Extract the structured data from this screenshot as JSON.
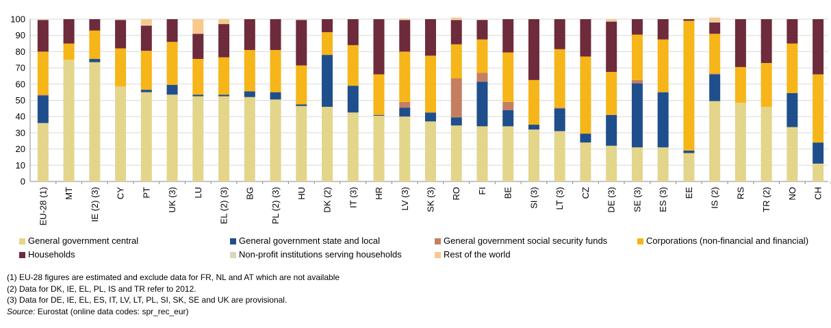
{
  "chart_data": {
    "type": "bar",
    "stacked": true,
    "title": "",
    "xlabel": "",
    "ylabel": "",
    "ylim": [
      0,
      100
    ],
    "yticks": [
      0,
      10,
      20,
      30,
      40,
      50,
      60,
      70,
      80,
      90,
      100
    ],
    "grid": true,
    "legend_position": "bottom",
    "categories": [
      "EU-28 (1)",
      "MT",
      "IE (2) (3)",
      "CY",
      "PT",
      "UK (3)",
      "LU",
      "EL (2) (3)",
      "BG",
      "PL (2) (3)",
      "HU",
      "DK (2)",
      "IT (3)",
      "HR",
      "LV (3)",
      "SK (3)",
      "RO",
      "FI",
      "BE",
      "SI (3)",
      "LT (3)",
      "CZ",
      "DE (3)",
      "SE (3)",
      "ES (3)",
      "EE",
      "IS (2)",
      "RS",
      "TR (2)",
      "NO",
      "CH"
    ],
    "series": [
      {
        "name": "General government central",
        "color": "#e3d58a",
        "values": [
          36,
          75,
          73.5,
          58.5,
          55,
          53.5,
          52.5,
          52.5,
          52,
          50.5,
          46.5,
          46,
          42.5,
          40.5,
          40,
          37,
          34.5,
          34,
          34,
          32,
          31,
          24,
          22,
          21,
          21,
          17.5,
          49.5,
          48.5,
          46,
          33.5,
          11
        ]
      },
      {
        "name": "General government state and local",
        "color": "#1f4e8c",
        "values": [
          17,
          0,
          2,
          0,
          1.5,
          6,
          1,
          1,
          3.5,
          4.5,
          1,
          32,
          16.5,
          0.5,
          5.5,
          5.5,
          5,
          27.5,
          10,
          3,
          14,
          5.5,
          19,
          39.5,
          34,
          1.5,
          16.5,
          0,
          0,
          21,
          13
        ]
      },
      {
        "name": "General government social security funds",
        "color": "#c47f60",
        "values": [
          0.5,
          0,
          0,
          0,
          0,
          0,
          0,
          0,
          0,
          0,
          0,
          0,
          0,
          0,
          3.5,
          0,
          24,
          5.5,
          5,
          0,
          0.5,
          0,
          0,
          2,
          0,
          0,
          0.5,
          0,
          0,
          0,
          0
        ]
      },
      {
        "name": "Corporations (non-financial and financial)",
        "color": "#f6b519",
        "values": [
          26.5,
          10,
          17.5,
          23.5,
          24,
          26.5,
          22,
          23,
          25.5,
          26,
          24,
          14,
          25,
          25,
          31,
          35,
          21,
          20.5,
          30.5,
          27.5,
          36,
          47.5,
          26.5,
          28,
          32.5,
          80,
          24.5,
          22,
          27,
          30.5,
          42
        ]
      },
      {
        "name": "Households",
        "color": "#6d2b3b",
        "values": [
          19.5,
          15,
          7,
          17.5,
          15.5,
          14,
          15.5,
          20.5,
          19,
          19,
          28,
          8,
          16,
          34,
          19.5,
          22.5,
          15,
          12,
          20.5,
          37.5,
          18.5,
          23,
          31,
          9.5,
          12.5,
          1,
          7,
          29.5,
          27,
          15,
          34
        ]
      },
      {
        "name": "Non-profit institutions serving households",
        "color": "#dcd6bb",
        "values": [
          0.5,
          0,
          0,
          0.5,
          0.5,
          0,
          0,
          0,
          0,
          0,
          0.5,
          0,
          0,
          0,
          0.5,
          0,
          0.5,
          0,
          0,
          0,
          0,
          0,
          0.5,
          0,
          0,
          0,
          0.5,
          0,
          0,
          0,
          0
        ]
      },
      {
        "name": "Rest of the world",
        "color": "#f8c98d",
        "values": [
          0,
          0,
          0,
          0,
          3.5,
          0,
          9,
          3,
          0,
          0,
          0,
          0,
          0,
          0,
          0.5,
          0,
          1,
          0,
          0,
          0,
          0,
          0,
          1,
          0,
          0,
          0,
          2.5,
          0,
          0,
          0,
          0
        ]
      }
    ],
    "legend_rows": [
      [
        "General government central",
        "General government state and local",
        "General government social security funds",
        "Corporations (non-financial and financial)"
      ],
      [
        "Households",
        "Non-profit institutions serving households",
        "Rest of the world"
      ]
    ]
  },
  "notes": {
    "note1": "(1) EU-28 figures are estimated and exclude data for FR, NL and AT which are not available",
    "note2": "(2) Data for DK, IE, EL, PL, IS and TR refer to 2012.",
    "note3": "(3) Data for DE, IE, EL, ES, IT, LV, LT, PL, SI, SK, SE and UK are provisional.",
    "source_label": "Source:",
    "source_text": " Eurostat (online data codes: spr_rec_eur)"
  }
}
